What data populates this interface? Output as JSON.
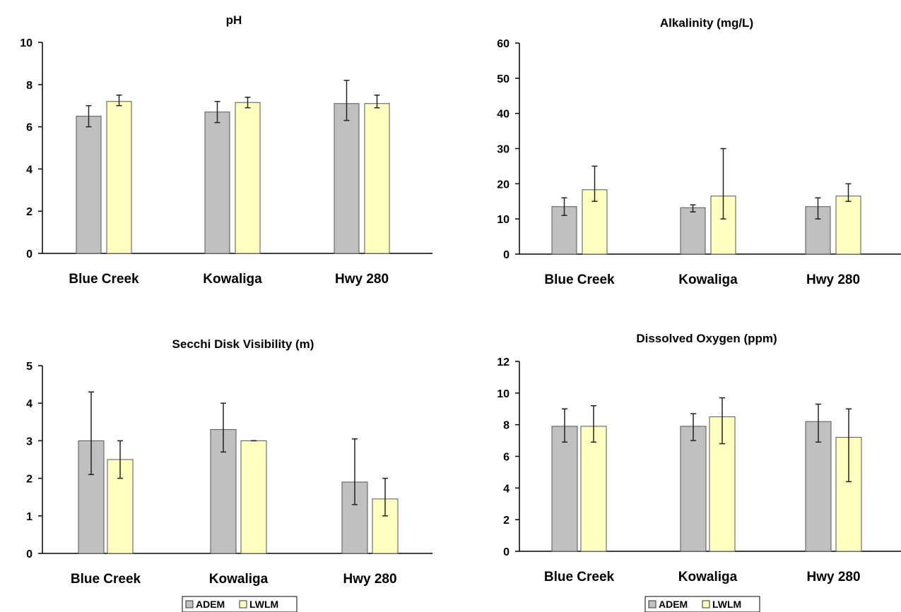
{
  "colors": {
    "ADEM": "#c0c0c0",
    "LWLM": "#ffffc0",
    "edge": "#555555",
    "axis": "#000000",
    "errorbar": "#222222"
  },
  "chart_data": [
    {
      "type": "bar",
      "title": "pH",
      "categories": [
        "Blue Creek",
        "Kowaliga",
        "Hwy 280"
      ],
      "ylim": [
        0,
        10
      ],
      "yticks": [
        "0",
        "2",
        "4",
        "6",
        "8",
        "10"
      ],
      "grid": false,
      "legend": null,
      "series": [
        {
          "name": "ADEM",
          "values": [
            6.5,
            6.7,
            7.1
          ],
          "err_low": [
            6.0,
            6.2,
            6.3
          ],
          "err_high": [
            7.0,
            7.2,
            8.2
          ]
        },
        {
          "name": "LWLM",
          "values": [
            7.2,
            7.15,
            7.1
          ],
          "err_low": [
            7.0,
            6.9,
            6.9
          ],
          "err_high": [
            7.5,
            7.4,
            7.5
          ]
        }
      ]
    },
    {
      "type": "bar",
      "title": "Alkalinity (mg/L)",
      "categories": [
        "Blue Creek",
        "Kowaliga",
        "Hwy 280"
      ],
      "ylim": [
        0,
        60
      ],
      "yticks": [
        "0",
        "10",
        "20",
        "30",
        "40",
        "50",
        "60"
      ],
      "grid": false,
      "legend": null,
      "series": [
        {
          "name": "ADEM",
          "values": [
            13.5,
            13.2,
            13.5
          ],
          "err_low": [
            11.0,
            12.0,
            10.0
          ],
          "err_high": [
            16.0,
            14.0,
            16.0
          ]
        },
        {
          "name": "LWLM",
          "values": [
            18.3,
            16.5,
            16.5
          ],
          "err_low": [
            15.0,
            10.0,
            15.0
          ],
          "err_high": [
            25.0,
            30.0,
            20.0
          ]
        }
      ]
    },
    {
      "type": "bar",
      "title": "Secchi Disk Visibility (m)",
      "categories": [
        "Blue Creek",
        "Kowaliga",
        "Hwy 280"
      ],
      "ylim": [
        0,
        5
      ],
      "yticks": [
        "0",
        "1",
        "2",
        "3",
        "4",
        "5"
      ],
      "grid": false,
      "legend": "bottom",
      "series": [
        {
          "name": "ADEM",
          "values": [
            3.0,
            3.3,
            1.9
          ],
          "err_low": [
            2.1,
            2.7,
            1.3
          ],
          "err_high": [
            4.3,
            4.0,
            3.05
          ]
        },
        {
          "name": "LWLM",
          "values": [
            2.5,
            3.0,
            1.45
          ],
          "err_low": [
            2.0,
            3.0,
            1.0
          ],
          "err_high": [
            3.0,
            3.0,
            2.0
          ]
        }
      ]
    },
    {
      "type": "bar",
      "title": "Dissolved Oxygen (ppm)",
      "categories": [
        "Blue Creek",
        "Kowaliga",
        "Hwy 280"
      ],
      "ylim": [
        0,
        12
      ],
      "yticks": [
        "0",
        "2",
        "4",
        "6",
        "8",
        "10",
        "12"
      ],
      "grid": false,
      "legend": "bottom",
      "series": [
        {
          "name": "ADEM",
          "values": [
            7.9,
            7.9,
            8.2
          ],
          "err_low": [
            6.9,
            7.0,
            6.9
          ],
          "err_high": [
            9.0,
            8.7,
            9.3
          ]
        },
        {
          "name": "LWLM",
          "values": [
            7.9,
            8.5,
            7.2
          ],
          "err_low": [
            6.9,
            6.8,
            4.4
          ],
          "err_high": [
            9.2,
            9.7,
            9.0
          ]
        }
      ]
    }
  ]
}
